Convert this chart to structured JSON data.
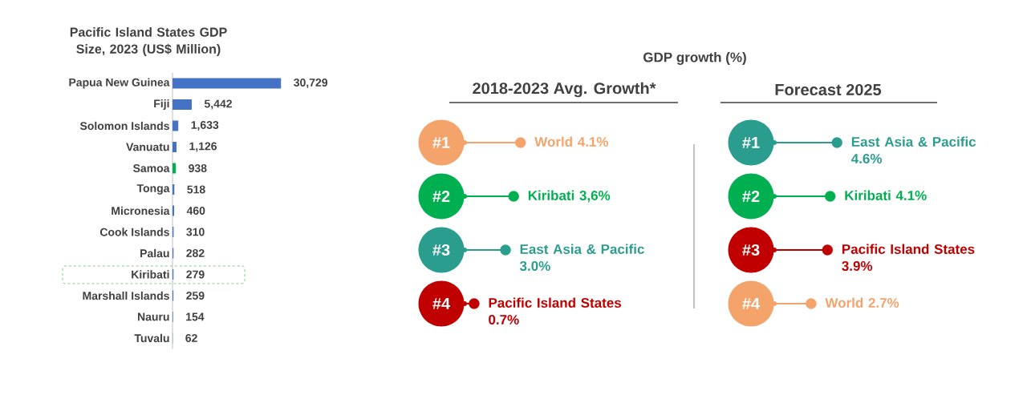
{
  "chart_data": [
    {
      "type": "bar",
      "orientation": "horizontal",
      "title": "Pacific Island States GDP Size, 2023 (US$ Million)",
      "categories": [
        "Papua New Guinea",
        "Fiji",
        "Solomon Islands",
        "Vanuatu",
        "Samoa",
        "Tonga",
        "Micronesia",
        "Cook Islands",
        "Palau",
        "Kiribati",
        "Marshall Islands",
        "Nauru",
        "Tuvalu"
      ],
      "values": [
        30729,
        5442,
        1633,
        1126,
        938,
        518,
        460,
        310,
        282,
        279,
        259,
        154,
        62
      ],
      "value_labels": [
        "30,729",
        "5,442",
        "1,633",
        "1,126",
        "938",
        "518",
        "460",
        "310",
        "282",
        "279",
        "259",
        "154",
        "62"
      ],
      "colors": [
        "#4472c4",
        "#4472c4",
        "#4472c4",
        "#4472c4",
        "#00b050",
        "#4472c4",
        "#4472c4",
        "#4472c4",
        "#4472c4",
        "#4472c4",
        "#4472c4",
        "#4472c4",
        "#4472c4"
      ]
    },
    {
      "type": "lollipop",
      "orientation": "horizontal",
      "title": "2018-2023 Avg. Growth*",
      "annotations": [
        "GDP growth (%)"
      ],
      "categories": [
        "#1",
        "#2",
        "#3",
        "#4"
      ],
      "values": [
        4.1,
        3.6,
        3.0,
        0.7
      ],
      "value_labels": [
        "World 4.1%",
        "Kiribati 3,6%",
        "East Asia & Pacific 3.0%",
        "Pacific Island States 0.7%"
      ],
      "colors": [
        "#f4a46a",
        "#00b050",
        "#2a9d8f",
        "#c00000"
      ]
    },
    {
      "type": "lollipop",
      "orientation": "horizontal",
      "title": "Forecast 2025",
      "categories": [
        "#1",
        "#2",
        "#3",
        "#4"
      ],
      "values": [
        4.6,
        4.1,
        3.9,
        2.7
      ],
      "value_labels": [
        "East Asia & Pacific 4.6%",
        "Kiribati 4.1%",
        "Pacific Island States 3.9%",
        "World 2.7%"
      ],
      "colors": [
        "#2a9d8f",
        "#00b050",
        "#c00000",
        "#f4a46a"
      ]
    }
  ]
}
